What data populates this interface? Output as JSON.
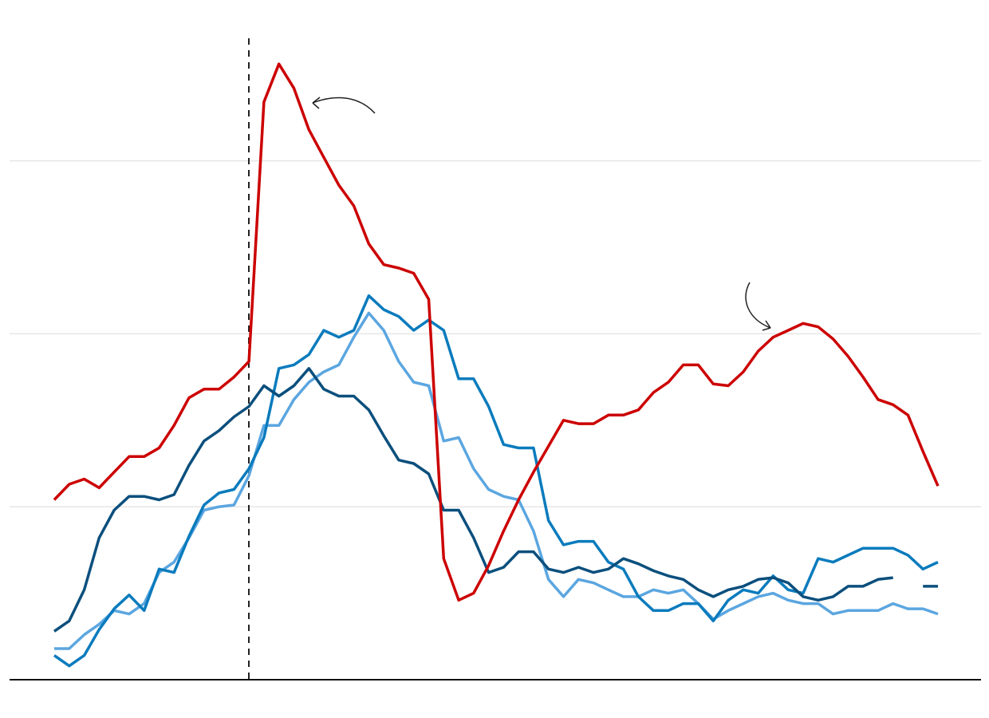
{
  "chart_data": {
    "type": "line",
    "categories": [
      null,
      null,
      null,
      null,
      null,
      null,
      null,
      null,
      null,
      null,
      null,
      null,
      null,
      null,
      null,
      null,
      null,
      null,
      null,
      null,
      null,
      null,
      null,
      null,
      null,
      null,
      null,
      null,
      null,
      null,
      null,
      null,
      null,
      null,
      null,
      null,
      null,
      null,
      null,
      null,
      null,
      null,
      null,
      null,
      null,
      null,
      null,
      null,
      null,
      null,
      null,
      null,
      null,
      null,
      null,
      null,
      null,
      null,
      null,
      null
    ],
    "series": [
      {
        "color": "#5ba6e0",
        "values": [
          0.18,
          0.18,
          0.26,
          0.32,
          0.4,
          0.38,
          0.44,
          0.62,
          0.68,
          0.82,
          0.98,
          1.0,
          1.01,
          1.18,
          1.47,
          1.47,
          1.62,
          1.72,
          1.78,
          1.82,
          1.98,
          2.12,
          2.02,
          1.84,
          1.72,
          1.7,
          1.38,
          1.4,
          1.22,
          1.1,
          1.06,
          1.04,
          0.86,
          0.58,
          0.48,
          0.58,
          0.56,
          0.52,
          0.48,
          0.48,
          0.52,
          0.5,
          0.52,
          0.44,
          0.35,
          0.4,
          0.44,
          0.48,
          0.5,
          0.46,
          0.44,
          0.44,
          0.38,
          0.4,
          0.4,
          0.4,
          0.44,
          0.41,
          0.41,
          0.38
        ]
      },
      {
        "color": "#0a7bbd",
        "values": [
          0.14,
          0.08,
          0.14,
          0.29,
          0.41,
          0.49,
          0.4,
          0.64,
          0.62,
          0.83,
          1.01,
          1.08,
          1.1,
          1.22,
          1.4,
          1.8,
          1.82,
          1.88,
          2.02,
          1.98,
          2.02,
          2.22,
          2.14,
          2.1,
          2.02,
          2.08,
          2.02,
          1.74,
          1.74,
          1.58,
          1.36,
          1.34,
          1.34,
          0.92,
          0.78,
          0.8,
          0.8,
          0.68,
          0.64,
          0.48,
          0.4,
          0.4,
          0.44,
          0.44,
          0.34,
          0.46,
          0.52,
          0.5,
          0.6,
          0.52,
          0.5,
          0.7,
          0.68,
          0.72,
          0.76,
          0.76,
          0.76,
          0.72,
          0.64,
          0.68
        ]
      },
      {
        "color": "#0b4f7d",
        "values": [
          0.28,
          0.34,
          0.52,
          0.82,
          0.98,
          1.06,
          1.06,
          1.04,
          1.07,
          1.24,
          1.38,
          1.44,
          1.52,
          1.58,
          1.7,
          1.64,
          1.7,
          1.8,
          1.68,
          1.64,
          1.64,
          1.56,
          1.41,
          1.27,
          1.25,
          1.19,
          0.98,
          0.98,
          0.82,
          0.62,
          0.65,
          0.74,
          0.74,
          0.64,
          0.62,
          0.65,
          0.62,
          0.64,
          0.7,
          0.67,
          0.63,
          0.6,
          0.58,
          0.52,
          0.48,
          0.52,
          0.54,
          0.58,
          0.59,
          0.56,
          0.48,
          0.46,
          0.48,
          0.54,
          0.54,
          0.58,
          0.59,
          null,
          0.54,
          0.54
        ]
      },
      {
        "color": "#cc0000",
        "values": [
          1.04,
          1.13,
          1.16,
          1.11,
          1.2,
          1.29,
          1.29,
          1.34,
          1.47,
          1.63,
          1.68,
          1.68,
          1.75,
          1.84,
          3.34,
          3.56,
          3.42,
          3.18,
          3.02,
          2.86,
          2.74,
          2.52,
          2.4,
          2.38,
          2.35,
          2.2,
          0.7,
          0.46,
          0.5,
          0.66,
          0.86,
          1.04,
          1.2,
          1.35,
          1.5,
          1.48,
          1.48,
          1.53,
          1.53,
          1.56,
          1.66,
          1.72,
          1.82,
          1.82,
          1.71,
          1.7,
          1.78,
          1.9,
          1.98,
          2.02,
          2.06,
          2.04,
          1.97,
          1.87,
          1.75,
          1.62,
          1.59,
          1.53,
          1.32,
          1.12
        ]
      }
    ],
    "ylim": [
      0,
      3.93
    ],
    "yticks": [
      1,
      2,
      3
    ],
    "grid": true
  }
}
